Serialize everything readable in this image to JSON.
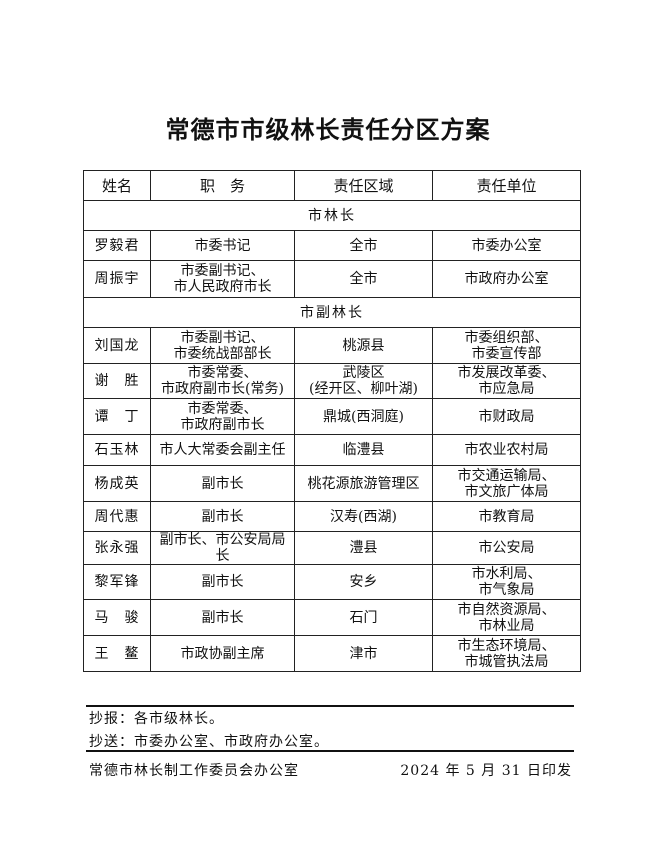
{
  "title": "常德市市级林长责任分区方案",
  "table": {
    "headers": [
      "姓名",
      "职　务",
      "责任区域",
      "责任单位"
    ],
    "sections": [
      {
        "label": "市林长",
        "rows": [
          {
            "name": "罗毅君",
            "position": [
              "市委书记"
            ],
            "area": [
              "全市"
            ],
            "unit": [
              "市委办公室"
            ]
          },
          {
            "name": "周振宇",
            "position": [
              "市委副书记、",
              "市人民政府市长"
            ],
            "area": [
              "全市"
            ],
            "unit": [
              "市政府办公室"
            ]
          }
        ]
      },
      {
        "label": "市副林长",
        "rows": [
          {
            "name": "刘国龙",
            "position": [
              "市委副书记、",
              "市委统战部部长"
            ],
            "area": [
              "桃源县"
            ],
            "unit": [
              "市委组织部、",
              "市委宣传部"
            ]
          },
          {
            "name": "谢　胜",
            "position": [
              "市委常委、",
              "市政府副市长(常务)"
            ],
            "area": [
              "武陵区",
              "(经开区、柳叶湖)"
            ],
            "unit": [
              "市发展改革委、",
              "市应急局"
            ]
          },
          {
            "name": "谭　丁",
            "position": [
              "市委常委、",
              "市政府副市长"
            ],
            "area": [
              "鼎城(西洞庭)"
            ],
            "unit": [
              "市财政局"
            ]
          },
          {
            "name": "石玉林",
            "position": [
              "市人大常委会副主任"
            ],
            "area": [
              "临澧县"
            ],
            "unit": [
              "市农业农村局"
            ]
          },
          {
            "name": "杨成英",
            "position": [
              "副市长"
            ],
            "area": [
              "桃花源旅游管理区"
            ],
            "unit": [
              "市交通运输局、",
              "市文旅广体局"
            ]
          },
          {
            "name": "周代惠",
            "position": [
              "副市长"
            ],
            "area": [
              "汉寿(西湖)"
            ],
            "unit": [
              "市教育局"
            ]
          },
          {
            "name": "张永强",
            "position": [
              "副市长、市公安局局长"
            ],
            "area": [
              "澧县"
            ],
            "unit": [
              "市公安局"
            ]
          },
          {
            "name": "黎军锋",
            "position": [
              "副市长"
            ],
            "area": [
              "安乡"
            ],
            "unit": [
              "市水利局、",
              "市气象局"
            ]
          },
          {
            "name": "马　骏",
            "position": [
              "副市长"
            ],
            "area": [
              "石门"
            ],
            "unit": [
              "市自然资源局、",
              "市林业局"
            ]
          },
          {
            "name": "王　鳌",
            "position": [
              "市政协副主席"
            ],
            "area": [
              "津市"
            ],
            "unit": [
              "市生态环境局、",
              "市城管执法局"
            ]
          }
        ]
      }
    ]
  },
  "footer": {
    "cc_report": "抄报：各市级林长。",
    "cc_send": "抄送：市委办公室、市政府办公室。",
    "issuer": "常德市林长制工作委员会办公室",
    "date": "2024 年 5 月 31 日印发"
  }
}
